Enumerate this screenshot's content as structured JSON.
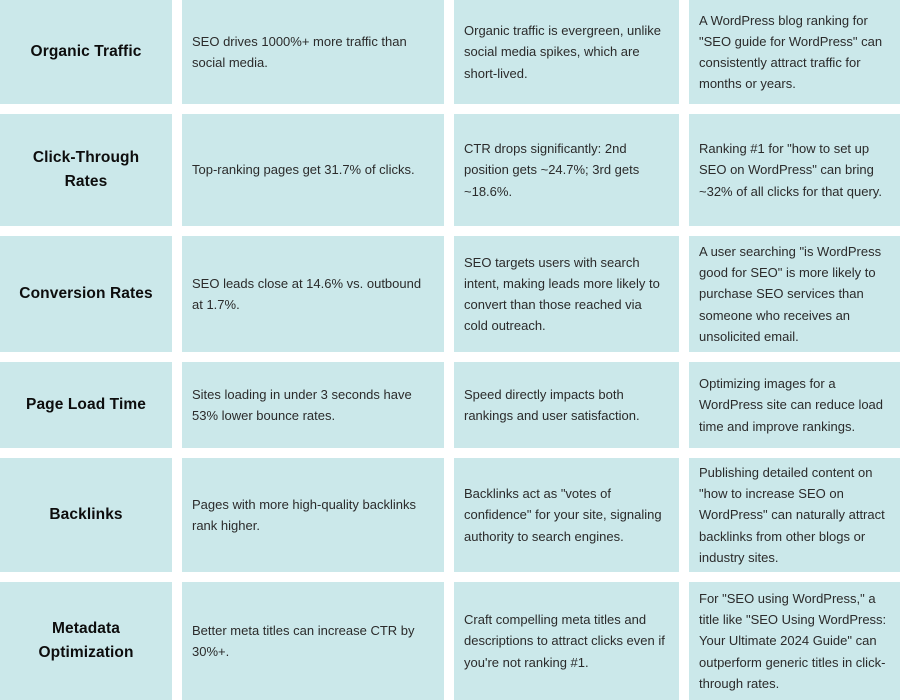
{
  "colors": {
    "page_bg": "#ffffff",
    "cell_bg": "#cbe8ea",
    "header_text": "#0d0d0d",
    "body_text": "#2b2b2b"
  },
  "table": {
    "rows": [
      {
        "label": "Organic Traffic",
        "cells": [
          "SEO drives 1000%+ more traffic than social media.",
          "Organic traffic is evergreen, unlike social media spikes, which are short-lived.",
          "A WordPress blog ranking for \"SEO guide for WordPress\" can consistently attract traffic for months or years."
        ]
      },
      {
        "label": "Click-Through Rates",
        "cells": [
          "Top-ranking pages get 31.7% of clicks.",
          "CTR drops significantly: 2nd position gets ~24.7%; 3rd gets ~18.6%.",
          "Ranking #1 for \"how to set up SEO on WordPress\" can bring ~32% of all clicks for that query."
        ]
      },
      {
        "label": "Conversion Rates",
        "cells": [
          "SEO leads close at 14.6% vs. outbound at 1.7%.",
          "SEO targets users with search intent, making leads more likely to convert than those reached via cold outreach.",
          "A user searching \"is WordPress good for SEO\" is more likely to purchase SEO services than someone who receives an unsolicited email."
        ]
      },
      {
        "label": "Page Load Time",
        "cells": [
          "Sites loading in under 3 seconds have 53% lower bounce rates.",
          "Speed directly impacts both rankings and user satisfaction.",
          "Optimizing images for a WordPress site can reduce load time and improve rankings."
        ]
      },
      {
        "label": "Backlinks",
        "cells": [
          "Pages with more high-quality backlinks rank higher.",
          "Backlinks act as \"votes of confidence\" for your site, signaling authority to search engines.",
          "Publishing detailed content on \"how to increase SEO on WordPress\" can naturally attract backlinks from other blogs or industry sites."
        ]
      },
      {
        "label": "Metadata Optimization",
        "cells": [
          "Better meta titles can increase CTR by 30%+.",
          "Craft compelling meta titles and descriptions to attract clicks even if you're not ranking #1.",
          "For \"SEO using WordPress,\" a title like \"SEO Using WordPress: Your Ultimate 2024 Guide\" can outperform generic titles in click-through rates."
        ]
      }
    ]
  }
}
